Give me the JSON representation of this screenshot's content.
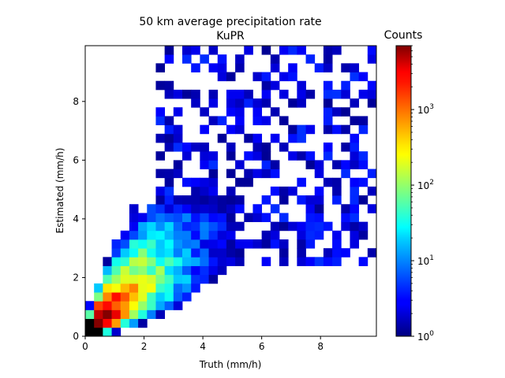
{
  "chart_data": {
    "type": "heatmap",
    "title": "50 km average precipitation rate",
    "subtitle": "KuPR",
    "xlabel": "Truth (mm/h)",
    "ylabel": "Estimated (mm/h)",
    "xlim": [
      0,
      9.9
    ],
    "ylim": [
      0,
      9.9
    ],
    "bin_size": 0.3,
    "x_ticks": [
      "0",
      "2",
      "4",
      "6",
      "8"
    ],
    "y_ticks": [
      "0",
      "2",
      "4",
      "6",
      "8"
    ],
    "colorbar": {
      "label": "Counts",
      "scale": "log",
      "range": [
        1,
        7000
      ],
      "colormap": "jet",
      "ticks": [
        {
          "base": "10",
          "exp": "0",
          "value": 1
        },
        {
          "base": "10",
          "exp": "1",
          "value": 10
        },
        {
          "base": "10",
          "exp": "2",
          "value": 100
        },
        {
          "base": "10",
          "exp": "3",
          "value": 1000
        }
      ]
    },
    "counts_approx": "log-normal cloud around truth 0-3 mm/h, estimated 0-4 mm/h, max near origin (~7000), sparse cells up to 9.9 on both axes"
  }
}
